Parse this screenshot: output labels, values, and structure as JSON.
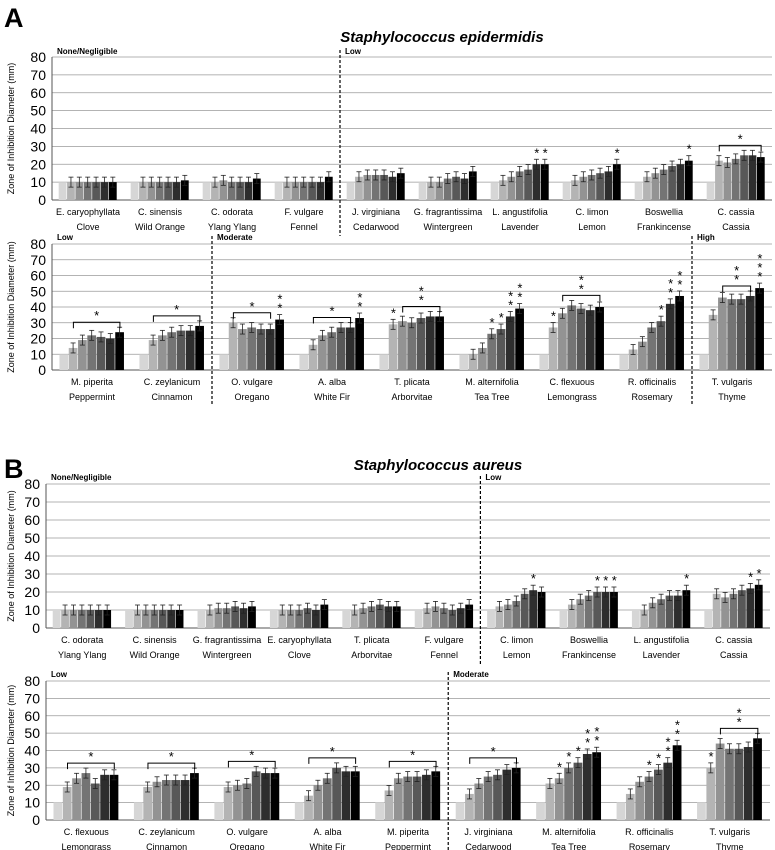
{
  "figure": {
    "panel_labels": [
      "A",
      "B"
    ],
    "bar_colors": [
      "#d6d6d6",
      "#b4b4b4",
      "#939393",
      "#747474",
      "#585858",
      "#2e2e2e",
      "#000000"
    ],
    "control_value": 10
  },
  "chart_data": [
    {
      "type": "bar",
      "panel": "A",
      "title": "Staphylococcus epidermidis",
      "ylabel": "Zone of Inhibition Diameter (mm)",
      "ylim": [
        0,
        80
      ],
      "yticks": [
        0,
        10,
        20,
        30,
        40,
        50,
        60,
        70,
        80
      ],
      "grid": true,
      "categories": [
        {
          "name": "E. caryophyllata",
          "common": "Clove",
          "values": [
            10,
            10,
            10,
            10,
            10,
            10,
            10
          ],
          "sig": []
        },
        {
          "name": "C. sinensis",
          "common": "Wild Orange",
          "values": [
            10,
            10,
            10,
            10,
            10,
            10,
            11
          ],
          "sig": []
        },
        {
          "name": "C. odorata",
          "common": "Ylang Ylang",
          "values": [
            10,
            10,
            11,
            10,
            10,
            10,
            12
          ],
          "sig": []
        },
        {
          "name": "F. vulgare",
          "common": "Fennel",
          "values": [
            10,
            10,
            10,
            10,
            10,
            10,
            13
          ],
          "sig": []
        },
        {
          "name": "J. virginiana",
          "common": "Cedarwood",
          "values": [
            10,
            13,
            14,
            14,
            14,
            13,
            15
          ],
          "sig": []
        },
        {
          "name": "G. fragrantissima",
          "common": "Wintergreen",
          "values": [
            10,
            10,
            10,
            12,
            13,
            12,
            16
          ],
          "sig": []
        },
        {
          "name": "L. angustifolia",
          "common": "Lavender",
          "values": [
            10,
            11,
            13,
            16,
            17,
            20,
            20
          ],
          "sig": [
            {
              "bars": [
                5
              ],
              "stars": 1
            },
            {
              "bars": [
                6
              ],
              "stars": 1
            }
          ]
        },
        {
          "name": "C. limon",
          "common": "Lemon",
          "values": [
            10,
            11,
            13,
            14,
            15,
            16,
            20
          ],
          "sig": [
            {
              "bars": [
                6
              ],
              "stars": 1
            }
          ]
        },
        {
          "name": "Boswellia",
          "common": "Frankincense",
          "values": [
            10,
            13,
            15,
            17,
            19,
            20,
            22
          ],
          "sig": [
            {
              "bars": [
                6
              ],
              "stars": 1
            }
          ]
        },
        {
          "name": "C. cassia",
          "common": "Cassia",
          "values": [
            10,
            22,
            21,
            23,
            25,
            25,
            24
          ],
          "sig": [
            {
              "bars": [
                1,
                6
              ],
              "stars": 1
            }
          ]
        }
      ],
      "groups": [
        {
          "label": "None/Negligible",
          "from": 0,
          "to": 3
        },
        {
          "label": "Low",
          "from": 4,
          "to": 9
        }
      ]
    },
    {
      "type": "bar",
      "panel": "A",
      "title": "",
      "ylabel": "Zone of Inhibition Diameter (mm)",
      "ylim": [
        0,
        80
      ],
      "yticks": [
        0,
        10,
        20,
        30,
        40,
        50,
        60,
        70,
        80
      ],
      "grid": true,
      "categories": [
        {
          "name": "M. piperita",
          "common": "Peppermint",
          "values": [
            10,
            14,
            19,
            22,
            21,
            20,
            24
          ],
          "sig": [
            {
              "bars": [
                1,
                6
              ],
              "stars": 1
            }
          ]
        },
        {
          "name": "C. zeylanicum",
          "common": "Cinnamon",
          "values": [
            10,
            19,
            22,
            24,
            25,
            25,
            28
          ],
          "sig": [
            {
              "bars": [
                1,
                6
              ],
              "stars": 1
            }
          ]
        },
        {
          "name": "O. vulgare",
          "common": "Oregano",
          "values": [
            10,
            30,
            26,
            27,
            26,
            26,
            32
          ],
          "sig": [
            {
              "bars": [
                1,
                5
              ],
              "stars": 1
            },
            {
              "bars": [
                6
              ],
              "stars": 2
            }
          ]
        },
        {
          "name": "A. alba",
          "common": "White Fir",
          "values": [
            10,
            16,
            22,
            24,
            27,
            27,
            33
          ],
          "sig": [
            {
              "bars": [
                1,
                5
              ],
              "stars": 1
            },
            {
              "bars": [
                6
              ],
              "stars": 2
            }
          ]
        },
        {
          "name": "T. plicata",
          "common": "Arborvitae",
          "values": [
            10,
            29,
            31,
            30,
            33,
            34,
            34
          ],
          "sig": [
            {
              "bars": [
                1
              ],
              "stars": 1
            },
            {
              "bars": [
                2,
                6
              ],
              "stars": 2
            }
          ]
        },
        {
          "name": "M. alternifolia",
          "common": "Tea Tree",
          "values": [
            10,
            10,
            14,
            23,
            26,
            34,
            39
          ],
          "sig": [
            {
              "bars": [
                3
              ],
              "stars": 1
            },
            {
              "bars": [
                4
              ],
              "stars": 1
            },
            {
              "bars": [
                5
              ],
              "stars": 2
            },
            {
              "bars": [
                6
              ],
              "stars": 2
            }
          ]
        },
        {
          "name": "C. flexuous",
          "common": "Lemongrass",
          "values": [
            10,
            27,
            36,
            41,
            39,
            38,
            40
          ],
          "sig": [
            {
              "bars": [
                1
              ],
              "stars": 1
            },
            {
              "bars": [
                2,
                6
              ],
              "stars": 2
            }
          ]
        },
        {
          "name": "R. officinalis",
          "common": "Rosemary",
          "values": [
            10,
            13,
            18,
            27,
            31,
            42,
            47
          ],
          "sig": [
            {
              "bars": [
                4
              ],
              "stars": 1
            },
            {
              "bars": [
                5
              ],
              "stars": 2
            },
            {
              "bars": [
                6
              ],
              "stars": 2
            }
          ]
        },
        {
          "name": "T. vulgaris",
          "common": "Thyme",
          "values": [
            10,
            35,
            46,
            45,
            45,
            47,
            52
          ],
          "sig": [
            {
              "bars": [
                2,
                5
              ],
              "stars": 2
            },
            {
              "bars": [
                6
              ],
              "stars": 3
            }
          ]
        }
      ],
      "groups": [
        {
          "label": "Low",
          "from": 0,
          "to": 1
        },
        {
          "label": "Moderate",
          "from": 2,
          "to": 7
        },
        {
          "label": "High",
          "from": 8,
          "to": 8
        }
      ]
    },
    {
      "type": "bar",
      "panel": "B",
      "title": "Staphylococcus aureus",
      "ylabel": "Zone of Inhibition Diameter (mm)",
      "ylim": [
        0,
        80
      ],
      "yticks": [
        0,
        10,
        20,
        30,
        40,
        50,
        60,
        70,
        80
      ],
      "grid": true,
      "categories": [
        {
          "name": "C. odorata",
          "common": "Ylang Ylang",
          "values": [
            10,
            10,
            10,
            10,
            10,
            10,
            10
          ],
          "sig": []
        },
        {
          "name": "C. sinensis",
          "common": "Wild Orange",
          "values": [
            10,
            10,
            10,
            10,
            10,
            10,
            10
          ],
          "sig": []
        },
        {
          "name": "G. fragrantissima",
          "common": "Wintergreen",
          "values": [
            10,
            10,
            11,
            11,
            12,
            11,
            12
          ],
          "sig": []
        },
        {
          "name": "E. caryophyllata",
          "common": "Clove",
          "values": [
            10,
            10,
            10,
            10,
            11,
            10,
            13
          ],
          "sig": []
        },
        {
          "name": "T. plicata",
          "common": "Arborvitae",
          "values": [
            10,
            10,
            11,
            12,
            13,
            12,
            12
          ],
          "sig": []
        },
        {
          "name": "F. vulgare",
          "common": "Fennel",
          "values": [
            10,
            11,
            12,
            11,
            10,
            11,
            13
          ],
          "sig": []
        },
        {
          "name": "C. limon",
          "common": "Lemon",
          "values": [
            10,
            12,
            13,
            15,
            19,
            21,
            20
          ],
          "sig": [
            {
              "bars": [
                5
              ],
              "stars": 1
            }
          ]
        },
        {
          "name": "Boswellia",
          "common": "Frankincense",
          "values": [
            10,
            13,
            16,
            18,
            20,
            20,
            20
          ],
          "sig": [
            {
              "bars": [
                4
              ],
              "stars": 1
            },
            {
              "bars": [
                5
              ],
              "stars": 1
            },
            {
              "bars": [
                6
              ],
              "stars": 1
            }
          ]
        },
        {
          "name": "L. angustifolia",
          "common": "Lavender",
          "values": [
            10,
            10,
            14,
            16,
            18,
            18,
            21
          ],
          "sig": [
            {
              "bars": [
                6
              ],
              "stars": 1
            }
          ]
        },
        {
          "name": "C. cassia",
          "common": "Cassia",
          "values": [
            10,
            19,
            17,
            19,
            21,
            22,
            24
          ],
          "sig": [
            {
              "bars": [
                5
              ],
              "stars": 1
            },
            {
              "bars": [
                6
              ],
              "stars": 1
            }
          ]
        }
      ],
      "groups": [
        {
          "label": "None/Negligible",
          "from": 0,
          "to": 5
        },
        {
          "label": "Low",
          "from": 6,
          "to": 9
        }
      ]
    },
    {
      "type": "bar",
      "panel": "B",
      "title": "",
      "ylabel": "Zone of Inhibition Diameter (mm)",
      "ylim": [
        0,
        80
      ],
      "yticks": [
        0,
        10,
        20,
        30,
        40,
        50,
        60,
        70,
        80
      ],
      "grid": true,
      "categories": [
        {
          "name": "C. flexuous",
          "common": "Lemongrass",
          "values": [
            10,
            19,
            24,
            27,
            21,
            26,
            26
          ],
          "sig": [
            {
              "bars": [
                1,
                6
              ],
              "stars": 1
            }
          ]
        },
        {
          "name": "C. zeylanicum",
          "common": "Cinnamon",
          "values": [
            10,
            19,
            22,
            23,
            23,
            23,
            27
          ],
          "sig": [
            {
              "bars": [
                1,
                6
              ],
              "stars": 1
            }
          ]
        },
        {
          "name": "O. vulgare",
          "common": "Oregano",
          "values": [
            10,
            19,
            20,
            21,
            28,
            27,
            27
          ],
          "sig": [
            {
              "bars": [
                1,
                6
              ],
              "stars": 1
            }
          ]
        },
        {
          "name": "A. alba",
          "common": "White Fir",
          "values": [
            10,
            14,
            20,
            24,
            30,
            28,
            28
          ],
          "sig": [
            {
              "bars": [
                1,
                6
              ],
              "stars": 1
            }
          ]
        },
        {
          "name": "M. piperita",
          "common": "Peppermint",
          "values": [
            10,
            17,
            24,
            25,
            25,
            26,
            28
          ],
          "sig": [
            {
              "bars": [
                1,
                6
              ],
              "stars": 1
            }
          ]
        },
        {
          "name": "J. virginiana",
          "common": "Cedarwood",
          "values": [
            10,
            15,
            21,
            25,
            26,
            29,
            30
          ],
          "sig": [
            {
              "bars": [
                1,
                6
              ],
              "stars": 1
            }
          ]
        },
        {
          "name": "M. alternifolia",
          "common": "Tea Tree",
          "values": [
            10,
            21,
            24,
            30,
            33,
            38,
            39
          ],
          "sig": [
            {
              "bars": [
                2
              ],
              "stars": 1
            },
            {
              "bars": [
                3
              ],
              "stars": 1
            },
            {
              "bars": [
                4
              ],
              "stars": 1
            },
            {
              "bars": [
                5
              ],
              "stars": 2
            },
            {
              "bars": [
                6
              ],
              "stars": 2
            }
          ]
        },
        {
          "name": "R. officinalis",
          "common": "Rosemary",
          "values": [
            10,
            15,
            22,
            25,
            29,
            33,
            43
          ],
          "sig": [
            {
              "bars": [
                3
              ],
              "stars": 1
            },
            {
              "bars": [
                4
              ],
              "stars": 1
            },
            {
              "bars": [
                5
              ],
              "stars": 2
            },
            {
              "bars": [
                6
              ],
              "stars": 2
            }
          ]
        },
        {
          "name": "T. vulgaris",
          "common": "Thyme",
          "values": [
            10,
            30,
            44,
            41,
            41,
            42,
            47
          ],
          "sig": [
            {
              "bars": [
                1
              ],
              "stars": 1
            },
            {
              "bars": [
                2,
                6
              ],
              "stars": 2
            }
          ]
        }
      ],
      "groups": [
        {
          "label": "Low",
          "from": 0,
          "to": 4
        },
        {
          "label": "Moderate",
          "from": 5,
          "to": 8
        }
      ]
    }
  ]
}
